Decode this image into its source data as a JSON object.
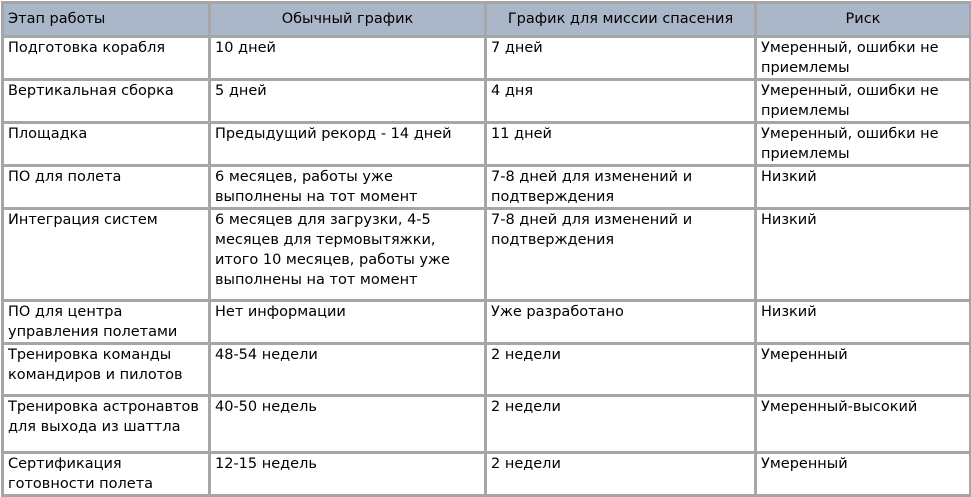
{
  "header": [
    "Этап работы",
    "Обычный график",
    "График для миссии спасения",
    "Риск"
  ],
  "rows": [
    [
      "Подготовка корабля",
      "10 дней",
      "7 дней",
      "Умеренный, ошибки не приемлемы"
    ],
    [
      "Вертикальная сборка",
      "5 дней",
      "4 дня",
      "Умеренный, ошибки не приемлемы"
    ],
    [
      "Площадка",
      "Предыдущий рекорд - 14 дней",
      "11 дней",
      "Умеренный, ошибки не приемлемы"
    ],
    [
      "ПО для полета",
      "6 месяцев, работы уже выполнены на тот момент",
      "7-8 дней для изменений и подтверждения",
      "Низкий"
    ],
    [
      "Интеграция систем",
      "6 месяцев для загрузки, 4-5 месяцев для термовытяжки, итого 10 месяцев, работы уже выполнены на тот момент",
      "7-8 дней для изменений и подтверждения",
      "Низкий"
    ],
    [
      "ПО для центра управления полетами",
      "Нет информации",
      "Уже разработано",
      "Низкий"
    ],
    [
      "Тренировка команды командиров и пилотов",
      "48-54 недели",
      "2 недели",
      "Умеренный"
    ],
    [
      "Тренировка астронавтов для выхода из шаттла",
      "40-50 недель",
      "2 недели",
      "Умеренный-высокий"
    ],
    [
      "Сертификация готовности полета",
      "12-15 недель",
      "2 недели",
      "Умеренный"
    ]
  ]
}
